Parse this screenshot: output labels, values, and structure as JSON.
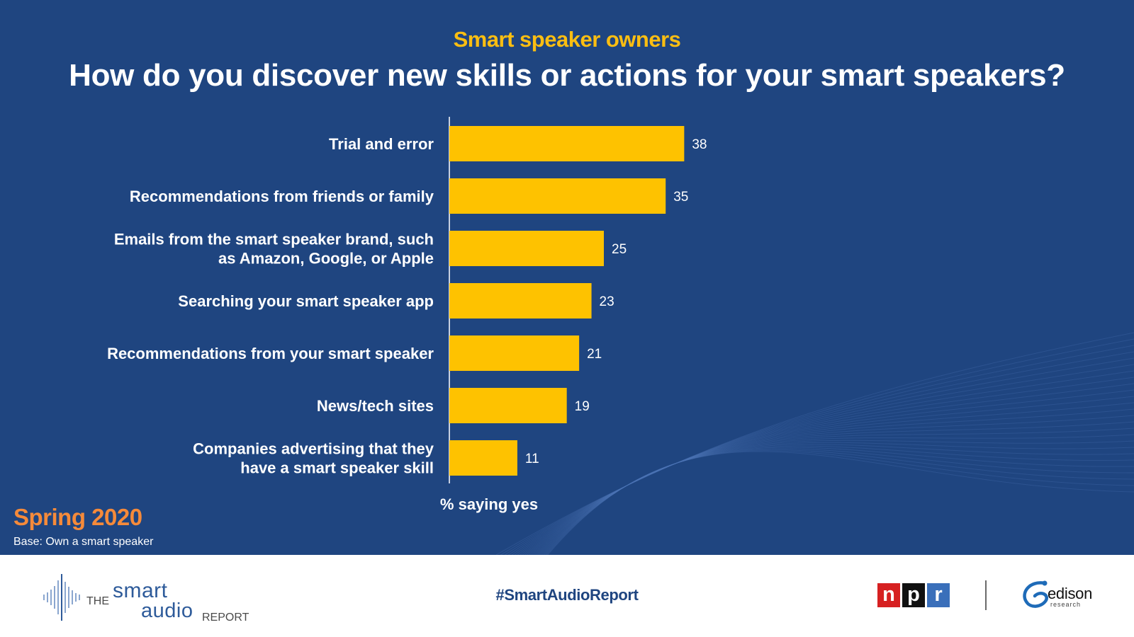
{
  "header": {
    "subtitle": "Smart speaker owners",
    "title": "How do you discover new skills or actions for your smart speakers?"
  },
  "chart_data": {
    "type": "bar",
    "orientation": "horizontal",
    "categories": [
      [
        "Trial and error"
      ],
      [
        "Recommendations from friends or family"
      ],
      [
        "Emails from the smart speaker brand, such",
        "as Amazon, Google, or Apple"
      ],
      [
        "Searching your smart speaker app"
      ],
      [
        "Recommendations from your smart speaker"
      ],
      [
        "News/tech sites"
      ],
      [
        "Companies advertising that they",
        "have a smart speaker skill"
      ]
    ],
    "values": [
      38,
      35,
      25,
      23,
      21,
      19,
      11
    ],
    "xlabel": "% saying yes",
    "xlim": [
      0,
      100
    ],
    "bar_color": "#fec200",
    "data_labels": true
  },
  "notes": {
    "season": "Spring 2020",
    "base": "Base: Own a smart speaker"
  },
  "footer": {
    "logo_the": "THE",
    "logo_smart": "smart",
    "logo_audio": "audio",
    "logo_report": "REPORT",
    "hashtag": "#SmartAudioReport",
    "npr_letters": [
      "n",
      "p",
      "r"
    ],
    "npr_colors": [
      "#d62021",
      "#111111",
      "#3a6fba"
    ],
    "edison_name": "edison",
    "edison_sub": "research"
  },
  "colors": {
    "background": "#1f4580",
    "accent_yellow": "#fbbe12",
    "accent_orange": "#f58a3a"
  }
}
